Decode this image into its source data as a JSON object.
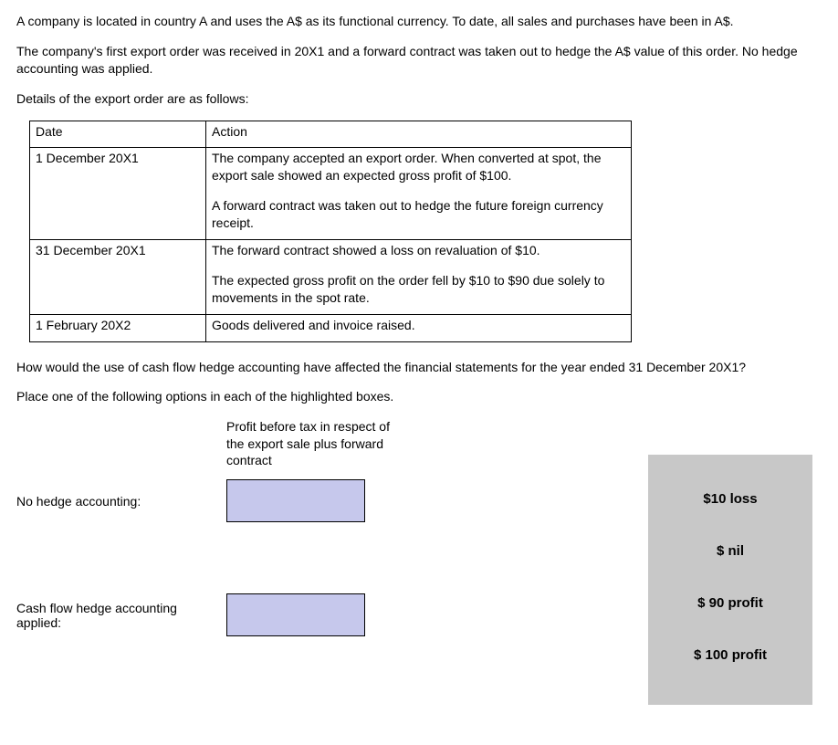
{
  "intro": {
    "p1": "A company is located in country A and uses the A$ as its functional currency. To date, all sales and purchases have been in A$.",
    "p2": "The company's first export order was received in 20X1 and a forward contract was taken out to hedge the A$ value of this order. No hedge accounting was applied.",
    "p3": "Details of the export order are as follows:"
  },
  "details_table": {
    "headers": {
      "date": "Date",
      "action": "Action"
    },
    "rows": [
      {
        "date": "1 December 20X1",
        "action_parts": [
          "The company accepted an export order. When converted at spot, the export sale showed an expected gross profit of $100.",
          "A forward contract was taken out to hedge the future foreign currency receipt."
        ]
      },
      {
        "date": "31 December 20X1",
        "action_parts": [
          "The forward contract showed a loss on revaluation of $10.",
          "The expected gross profit on the order fell by $10 to $90 due solely to movements in the spot rate."
        ]
      },
      {
        "date": "1 February 20X2",
        "action_parts": [
          "Goods delivered and invoice raised."
        ]
      }
    ]
  },
  "question": {
    "q1": "How would the use of cash flow hedge accounting have affected the financial statements for the year ended 31 December 20X1?",
    "q2": "Place one of the following options in each of the highlighted boxes."
  },
  "answer_grid": {
    "column_header": "Profit before tax in respect of the export sale plus forward contract",
    "row1_label": "No hedge accounting:",
    "row2_label": "Cash flow hedge accounting applied:"
  },
  "options": [
    "$10 loss",
    "$ nil",
    "$ 90 profit",
    "$ 100 profit"
  ],
  "colors": {
    "drop_box_fill": "#c6c8ec",
    "options_panel_fill": "#c8c8c8",
    "border": "#000000",
    "background": "#ffffff",
    "text": "#000000"
  },
  "typography": {
    "body_font": "Arial, Helvetica, sans-serif",
    "body_size_pt": 10.5,
    "option_weight": "bold"
  }
}
